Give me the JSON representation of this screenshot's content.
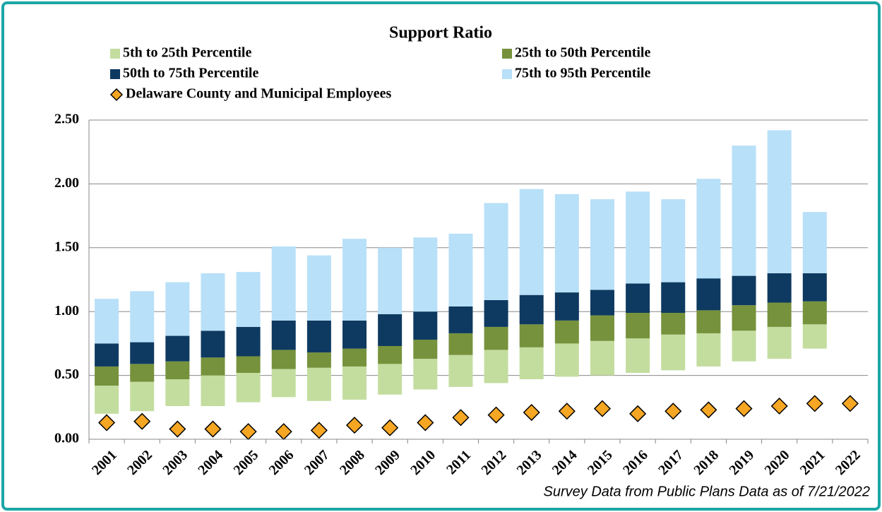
{
  "chart_data": {
    "type": "floating_stacked_bar",
    "title": "Support Ratio",
    "note": "Survey Data from Public Plans Data as of 7/21/2022",
    "categories": [
      "2001",
      "2002",
      "2003",
      "2004",
      "2005",
      "2006",
      "2007",
      "2008",
      "2009",
      "2010",
      "2011",
      "2012",
      "2013",
      "2014",
      "2015",
      "2016",
      "2017",
      "2018",
      "2019",
      "2020",
      "2021",
      "2022"
    ],
    "base": [
      0.2,
      0.22,
      0.26,
      0.26,
      0.29,
      0.33,
      0.3,
      0.31,
      0.35,
      0.39,
      0.41,
      0.44,
      0.47,
      0.49,
      0.5,
      0.52,
      0.54,
      0.57,
      0.61,
      0.63,
      0.71,
      null
    ],
    "series": [
      {
        "name": "5th to 25th Percentile",
        "color": "#c3dd9f",
        "kind": "bar",
        "values": [
          0.22,
          0.23,
          0.21,
          0.24,
          0.23,
          0.22,
          0.26,
          0.26,
          0.24,
          0.24,
          0.25,
          0.26,
          0.25,
          0.26,
          0.27,
          0.27,
          0.28,
          0.26,
          0.24,
          0.25,
          0.19,
          null
        ]
      },
      {
        "name": "25th to 50th Percentile",
        "color": "#76923c",
        "kind": "bar",
        "values": [
          0.15,
          0.14,
          0.14,
          0.14,
          0.13,
          0.15,
          0.12,
          0.14,
          0.14,
          0.15,
          0.17,
          0.18,
          0.18,
          0.18,
          0.2,
          0.2,
          0.17,
          0.18,
          0.2,
          0.19,
          0.18,
          null
        ]
      },
      {
        "name": "50th to 75th Percentile",
        "color": "#0e3a61",
        "kind": "bar",
        "values": [
          0.18,
          0.17,
          0.2,
          0.21,
          0.23,
          0.23,
          0.25,
          0.22,
          0.25,
          0.22,
          0.21,
          0.21,
          0.23,
          0.22,
          0.2,
          0.23,
          0.24,
          0.25,
          0.23,
          0.23,
          0.22,
          null
        ]
      },
      {
        "name": "75th to 95th Percentile",
        "color": "#b8e0f8",
        "kind": "bar",
        "values": [
          0.35,
          0.4,
          0.42,
          0.45,
          0.43,
          0.58,
          0.51,
          0.64,
          0.52,
          0.58,
          0.57,
          0.76,
          0.83,
          0.77,
          0.71,
          0.72,
          0.65,
          0.78,
          1.02,
          1.12,
          0.48,
          null
        ]
      },
      {
        "name": "Delaware County and Municipal Employees",
        "color": "#f5a623",
        "kind": "diamond",
        "values": [
          0.13,
          0.14,
          0.08,
          0.08,
          0.06,
          0.06,
          0.07,
          0.11,
          0.09,
          0.13,
          0.17,
          0.19,
          0.21,
          0.22,
          0.24,
          0.2,
          0.22,
          0.23,
          0.24,
          0.26,
          0.28,
          0.28
        ]
      }
    ],
    "ylim": [
      0,
      2.5
    ],
    "yticks": [
      {
        "value": 0,
        "label": "0.00"
      },
      {
        "value": 0.5,
        "label": "0.50"
      },
      {
        "value": 1,
        "label": "1.00"
      },
      {
        "value": 1.5,
        "label": "1.50"
      },
      {
        "value": 2,
        "label": "2.00"
      },
      {
        "value": 2.5,
        "label": "2.50"
      }
    ],
    "grid": true,
    "legend": "top"
  }
}
